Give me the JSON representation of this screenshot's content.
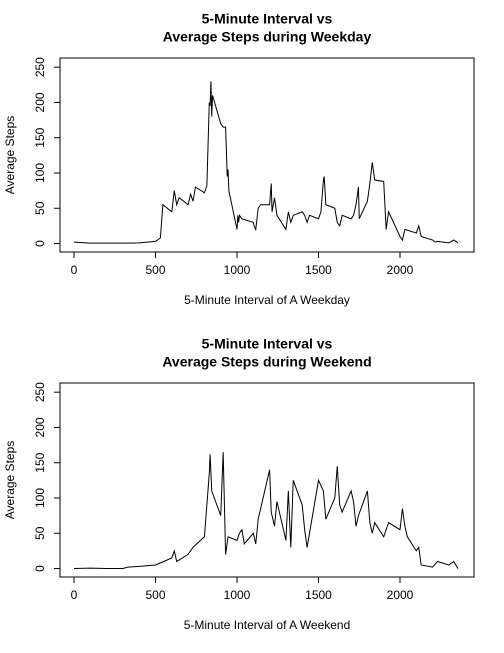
{
  "chart_data": [
    {
      "type": "line",
      "title": [
        "5-Minute Interval vs",
        "Average Steps during Weekday"
      ],
      "x_label": "5-Minute Interval of A Weekday",
      "y_label": "Average Steps",
      "xlim": [
        -86,
        2454
      ],
      "ylim": [
        -12,
        263
      ],
      "xticks": [
        0,
        500,
        1000,
        1500,
        2000
      ],
      "yticks": [
        0,
        50,
        100,
        150,
        200,
        250
      ],
      "x": [
        0,
        100,
        200,
        300,
        400,
        500,
        530,
        545,
        600,
        615,
        630,
        645,
        700,
        715,
        730,
        745,
        800,
        815,
        830,
        835,
        840,
        845,
        850,
        900,
        915,
        930,
        940,
        945,
        950,
        1000,
        1005,
        1010,
        1015,
        1030,
        1100,
        1105,
        1115,
        1130,
        1145,
        1200,
        1210,
        1215,
        1230,
        1245,
        1300,
        1315,
        1330,
        1345,
        1400,
        1415,
        1430,
        1445,
        1500,
        1515,
        1530,
        1535,
        1545,
        1600,
        1615,
        1630,
        1645,
        1700,
        1715,
        1730,
        1745,
        1750,
        1800,
        1815,
        1830,
        1845,
        1900,
        1915,
        1930,
        2000,
        2015,
        2030,
        2100,
        2115,
        2130,
        2200,
        2215,
        2230,
        2300,
        2330,
        2355
      ],
      "series": [
        {
          "color": "#000000",
          "values": [
            2,
            0.5,
            0.5,
            0.5,
            1,
            3,
            8,
            55,
            45,
            75,
            55,
            65,
            55,
            70,
            60,
            80,
            72,
            82,
            200,
            195,
            230,
            180,
            210,
            170,
            165,
            165,
            95,
            105,
            75,
            20,
            40,
            30,
            40,
            35,
            30,
            25,
            20,
            50,
            55,
            55,
            85,
            45,
            65,
            40,
            20,
            45,
            30,
            40,
            45,
            40,
            30,
            40,
            35,
            45,
            90,
            95,
            55,
            50,
            30,
            25,
            40,
            35,
            40,
            55,
            80,
            35,
            60,
            85,
            115,
            90,
            88,
            20,
            45,
            10,
            5,
            20,
            15,
            25,
            10,
            5,
            2,
            3,
            1,
            5,
            1
          ]
        }
      ]
    },
    {
      "type": "line",
      "title": [
        "5-Minute Interval vs",
        "Average Steps during Weekend"
      ],
      "x_label": "5-Minute Interval of A Weekend",
      "y_label": "Average Steps",
      "xlim": [
        -86,
        2454
      ],
      "ylim": [
        -12,
        263
      ],
      "xticks": [
        0,
        500,
        1000,
        1500,
        2000
      ],
      "yticks": [
        0,
        50,
        100,
        150,
        200,
        250
      ],
      "x": [
        0,
        100,
        200,
        300,
        330,
        400,
        500,
        530,
        600,
        615,
        630,
        700,
        730,
        800,
        830,
        835,
        845,
        900,
        915,
        930,
        945,
        1000,
        1015,
        1030,
        1045,
        1100,
        1115,
        1130,
        1200,
        1210,
        1230,
        1245,
        1300,
        1315,
        1330,
        1345,
        1400,
        1415,
        1430,
        1500,
        1530,
        1545,
        1600,
        1615,
        1630,
        1645,
        1700,
        1715,
        1730,
        1745,
        1800,
        1815,
        1830,
        1845,
        1900,
        1930,
        2000,
        2015,
        2030,
        2045,
        2100,
        2115,
        2130,
        2200,
        2230,
        2300,
        2330,
        2355
      ],
      "series": [
        {
          "color": "#000000",
          "values": [
            0,
            0.5,
            0,
            0,
            2,
            3,
            5,
            8,
            15,
            25,
            10,
            20,
            30,
            45,
            135,
            162,
            110,
            75,
            165,
            20,
            45,
            40,
            50,
            55,
            35,
            50,
            35,
            70,
            140,
            80,
            60,
            95,
            40,
            110,
            30,
            125,
            90,
            55,
            30,
            125,
            110,
            70,
            100,
            145,
            90,
            80,
            110,
            95,
            60,
            75,
            110,
            65,
            50,
            65,
            45,
            65,
            55,
            85,
            60,
            45,
            25,
            30,
            5,
            2,
            10,
            5,
            10,
            0
          ]
        }
      ]
    }
  ]
}
